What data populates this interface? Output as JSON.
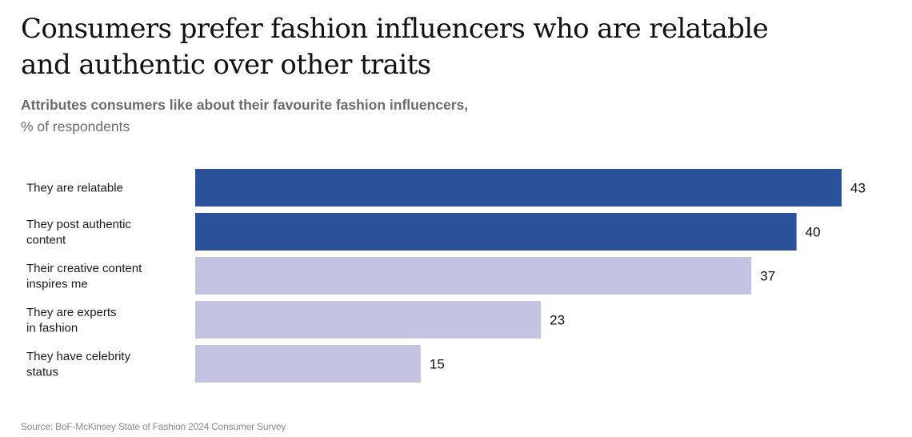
{
  "header": {
    "title": "Consumers prefer fashion influencers who are relatable and authentic over other traits",
    "subtitle": "Attributes consumers like about their favourite fashion influencers,",
    "subtitle_unit": "% of respondents"
  },
  "footer": {
    "source": "Source: BoF-McKinsey State of Fashion 2024 Consumer Survey"
  },
  "colors": {
    "highlight": "#2a5199",
    "muted": "#c4c4e2",
    "label_text": "#1a1a1a",
    "value_text": "#111111"
  },
  "chart_data": {
    "type": "bar",
    "orientation": "horizontal",
    "title": "Consumers prefer fashion influencers who are relatable and authentic over other traits",
    "subtitle": "Attributes consumers like about their favourite fashion influencers, % of respondents",
    "categories": [
      [
        "They are relatable"
      ],
      [
        "They post authentic",
        "content"
      ],
      [
        "Their creative content",
        "inspires me"
      ],
      [
        "They are experts",
        "in fashion"
      ],
      [
        "They have celebrity",
        "status"
      ]
    ],
    "values": [
      43,
      40,
      37,
      23,
      15
    ],
    "highlighted": [
      true,
      true,
      false,
      false,
      false
    ],
    "xlim": [
      0,
      43
    ],
    "grid": false,
    "legend": "none"
  }
}
